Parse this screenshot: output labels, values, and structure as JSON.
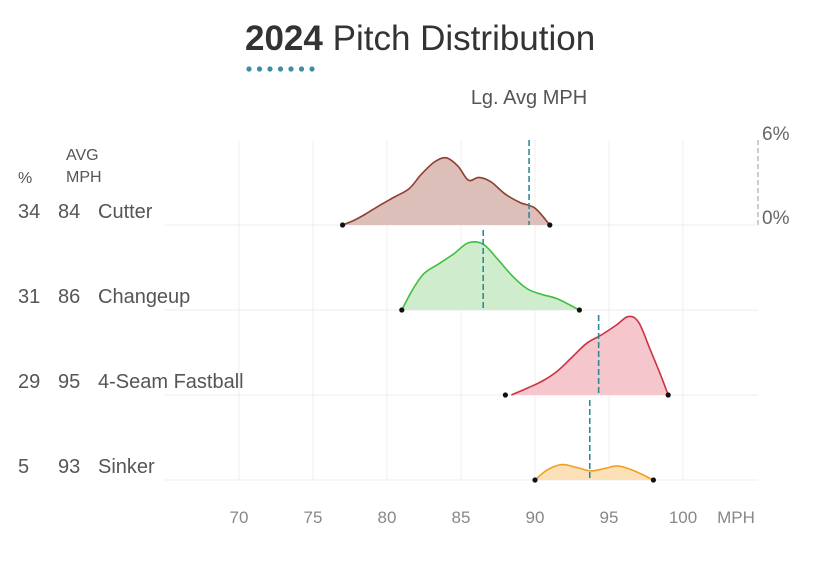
{
  "header": {
    "title_year": "2024",
    "title_rest": " Pitch Distribution",
    "title_accent_color": "#3a8fa0",
    "lg_avg_label": "Lg. Avg MPH"
  },
  "columns": {
    "pct_header": "%",
    "avg_header_line1": "AVG",
    "avg_header_line2": "MPH"
  },
  "scale": {
    "top_label": "6%",
    "bottom_label": "0%",
    "max_density": 6
  },
  "chart_data": {
    "type": "area",
    "title": "2024 Pitch Distribution",
    "xlabel": "MPH",
    "xlim": [
      64,
      111
    ],
    "x_ticks": [
      70,
      75,
      80,
      85,
      90,
      95,
      100
    ],
    "x_tick_labels": [
      "70",
      "75",
      "80",
      "85",
      "90",
      "95",
      "100"
    ],
    "x_unit_label": "MPH",
    "grid": true,
    "series": [
      {
        "name": "Cutter",
        "pct": "34",
        "avg_mph": "84",
        "lg_avg_mph": 89.6,
        "fill": "#dcbfb9",
        "stroke": "#8e3f2e",
        "range": [
          77,
          91
        ],
        "points": [
          [
            77,
            0
          ],
          [
            77.8,
            0.35
          ],
          [
            78.5,
            0.75
          ],
          [
            79.5,
            1.4
          ],
          [
            80.5,
            2.0
          ],
          [
            81.5,
            2.6
          ],
          [
            82.3,
            3.6
          ],
          [
            83.2,
            4.5
          ],
          [
            84,
            4.8
          ],
          [
            84.8,
            4.2
          ],
          [
            85.5,
            3.2
          ],
          [
            86.2,
            3.4
          ],
          [
            87,
            3.1
          ],
          [
            88,
            2.2
          ],
          [
            89,
            1.6
          ],
          [
            90,
            1.2
          ],
          [
            91,
            0
          ]
        ]
      },
      {
        "name": "Changeup",
        "pct": "31",
        "avg_mph": "86",
        "lg_avg_mph": 86.5,
        "fill": "#cfedcc",
        "stroke": "#3fbe3f",
        "range": [
          81,
          93
        ],
        "points": [
          [
            81,
            0
          ],
          [
            81.7,
            1.4
          ],
          [
            82.5,
            2.6
          ],
          [
            83.5,
            3.3
          ],
          [
            84.5,
            4.0
          ],
          [
            85.5,
            4.8
          ],
          [
            86.5,
            4.7
          ],
          [
            87.5,
            3.6
          ],
          [
            88.5,
            2.4
          ],
          [
            89.5,
            1.5
          ],
          [
            90.5,
            1.1
          ],
          [
            91.5,
            0.8
          ],
          [
            93,
            0
          ]
        ]
      },
      {
        "name": "4-Seam Fastball",
        "pct": "29",
        "avg_mph": "95",
        "lg_avg_mph": 94.3,
        "fill": "#f5c6cb",
        "stroke": "#cc3344",
        "range": [
          88,
          99
        ],
        "points": [
          [
            88.4,
            0
          ],
          [
            89.5,
            0.5
          ],
          [
            90.5,
            1.0
          ],
          [
            91.5,
            1.7
          ],
          [
            92.5,
            2.7
          ],
          [
            93.5,
            3.7
          ],
          [
            94.5,
            4.3
          ],
          [
            95.5,
            5.0
          ],
          [
            96.3,
            5.6
          ],
          [
            97,
            5.2
          ],
          [
            97.8,
            3.2
          ],
          [
            98.5,
            1.4
          ],
          [
            99,
            0
          ]
        ]
      },
      {
        "name": "Sinker",
        "pct": "5",
        "avg_mph": "93",
        "lg_avg_mph": 93.7,
        "fill": "#fbe0b8",
        "stroke": "#f0a020",
        "range": [
          90,
          98
        ],
        "points": [
          [
            90,
            0
          ],
          [
            90.8,
            0.7
          ],
          [
            91.8,
            1.1
          ],
          [
            92.8,
            0.9
          ],
          [
            93.8,
            0.65
          ],
          [
            94.8,
            0.85
          ],
          [
            95.6,
            1.0
          ],
          [
            96.6,
            0.7
          ],
          [
            98,
            0
          ]
        ]
      }
    ]
  }
}
